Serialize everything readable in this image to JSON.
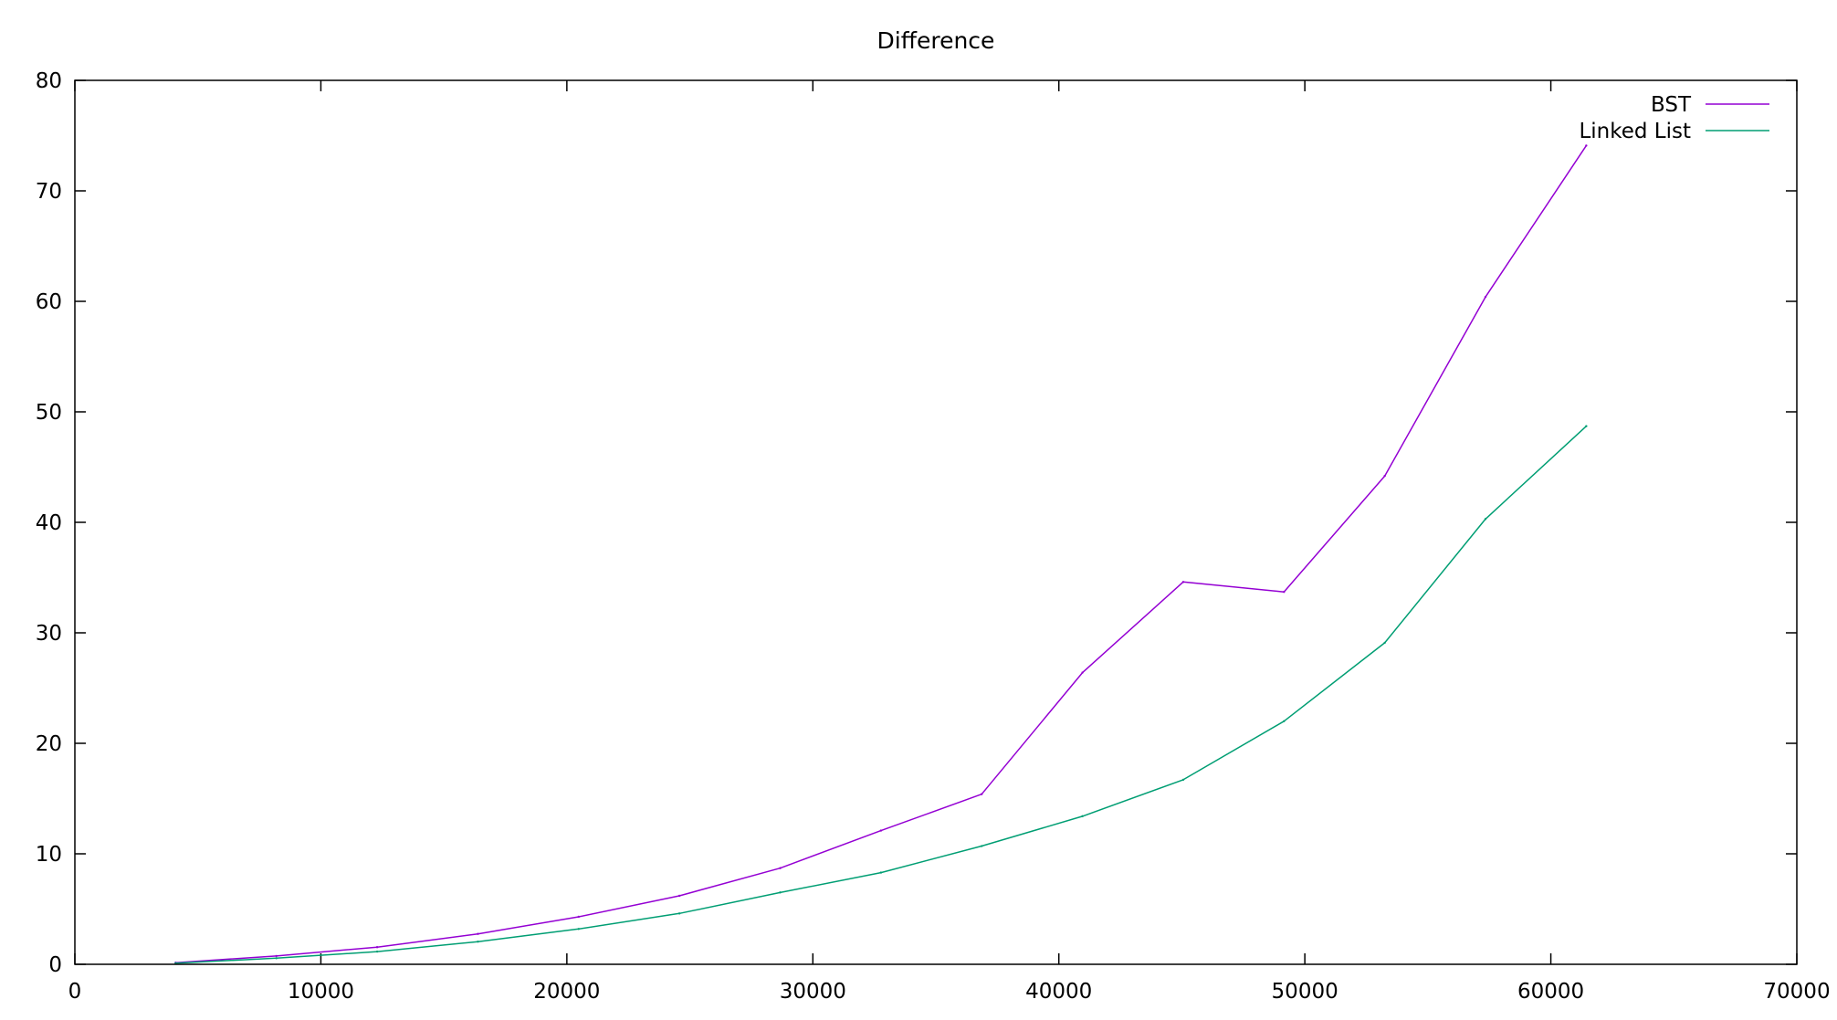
{
  "chart_data": {
    "type": "line",
    "title": "Difference",
    "xlabel": "",
    "ylabel": "",
    "xlim": [
      0,
      70000
    ],
    "ylim": [
      0,
      80
    ],
    "x_ticks": [
      0,
      10000,
      20000,
      30000,
      40000,
      50000,
      60000,
      70000
    ],
    "y_ticks": [
      0,
      10,
      20,
      30,
      40,
      50,
      60,
      70,
      80
    ],
    "grid": false,
    "legend_position": "top-right",
    "series": [
      {
        "name": "BST",
        "color": "#9400d3",
        "x": [
          4096,
          8192,
          12288,
          16384,
          20480,
          24576,
          28672,
          32768,
          36864,
          40960,
          45056,
          49152,
          53248,
          57344,
          61440
        ],
        "y": [
          0.15,
          0.75,
          1.55,
          2.75,
          4.3,
          6.2,
          8.7,
          12.1,
          15.4,
          26.4,
          34.6,
          33.7,
          44.2,
          60.4,
          74.1
        ]
      },
      {
        "name": "Linked List",
        "color": "#009e73",
        "x": [
          4096,
          8192,
          12288,
          16384,
          20480,
          24576,
          28672,
          32768,
          36864,
          40960,
          45056,
          49152,
          53248,
          57344,
          61440
        ],
        "y": [
          0.1,
          0.55,
          1.15,
          2.05,
          3.2,
          4.6,
          6.5,
          8.3,
          10.7,
          13.4,
          16.7,
          22.0,
          29.1,
          40.3,
          48.7
        ]
      }
    ]
  }
}
